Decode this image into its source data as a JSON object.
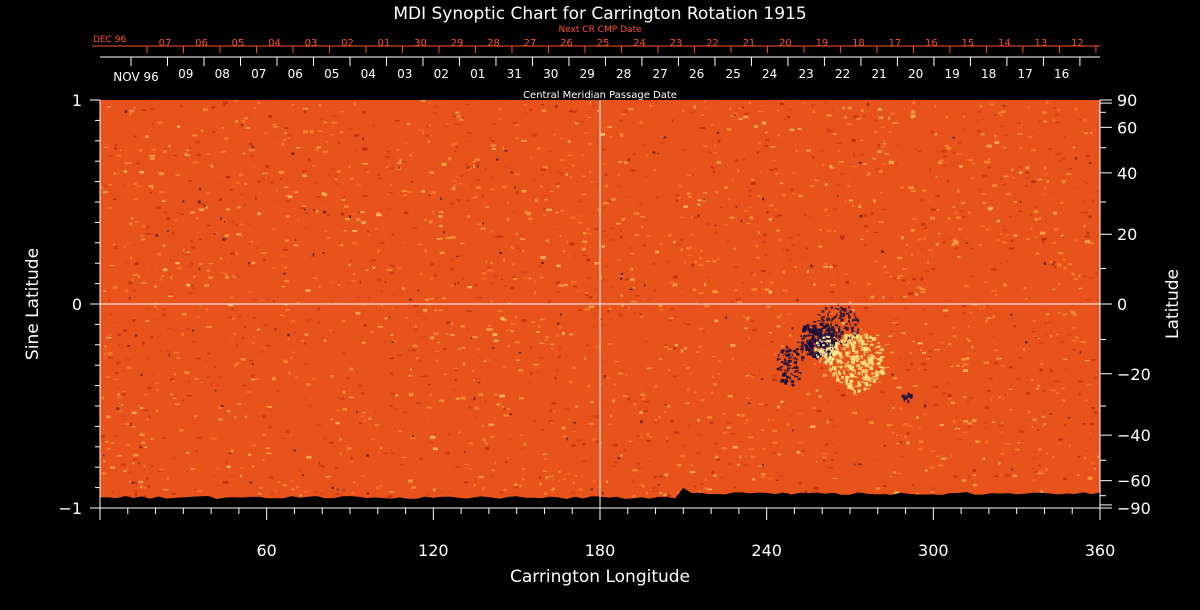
{
  "chart_data": {
    "type": "heatmap",
    "title": "MDI Synoptic Chart for Carrington Rotation 1915",
    "xlabel": "Carrington Longitude",
    "ylabel_left": "Sine Latitude",
    "ylabel_right": "Latitude",
    "top_axis_label": "Central Meridian Passage Date",
    "next_cr_label": "Next CR CMP Date",
    "xlim": [
      0,
      360
    ],
    "ylim": [
      -1,
      1
    ],
    "x_ticks": [
      60,
      120,
      180,
      240,
      300,
      360
    ],
    "y_ticks_left": [
      {
        "value": 1,
        "label": "1"
      },
      {
        "value": 0,
        "label": "0"
      },
      {
        "value": -1,
        "label": "−1"
      }
    ],
    "y_ticks_right": [
      90,
      60,
      40,
      20,
      0,
      -20,
      -40,
      -60,
      -90
    ],
    "y_ticks_right_labels": [
      "90",
      "60",
      "40",
      "20",
      "0",
      "−20",
      "−40",
      "−60",
      "−90"
    ],
    "cmp_month_label": "NOV 96",
    "cmp_dates": [
      "09",
      "08",
      "07",
      "06",
      "05",
      "04",
      "03",
      "02",
      "01",
      "31",
      "30",
      "29",
      "28",
      "27",
      "26",
      "25",
      "24",
      "23",
      "22",
      "21",
      "20",
      "19",
      "18",
      "17",
      "16"
    ],
    "next_cr_month_label": "DEC 96",
    "next_cr_dates": [
      "07",
      "06",
      "05",
      "04",
      "03",
      "02",
      "01",
      "30",
      "29",
      "28",
      "27",
      "26",
      "25",
      "24",
      "23",
      "22",
      "21",
      "20",
      "19",
      "18",
      "17",
      "16",
      "15",
      "14",
      "13",
      "12"
    ],
    "colors": {
      "background": "#000000",
      "map_base": "#e8531c",
      "positive_polarity": "#ffe27a",
      "negative_polarity": "#1a1040",
      "next_cr_text": "#ff5030",
      "grid": "#ffffff"
    }
  }
}
